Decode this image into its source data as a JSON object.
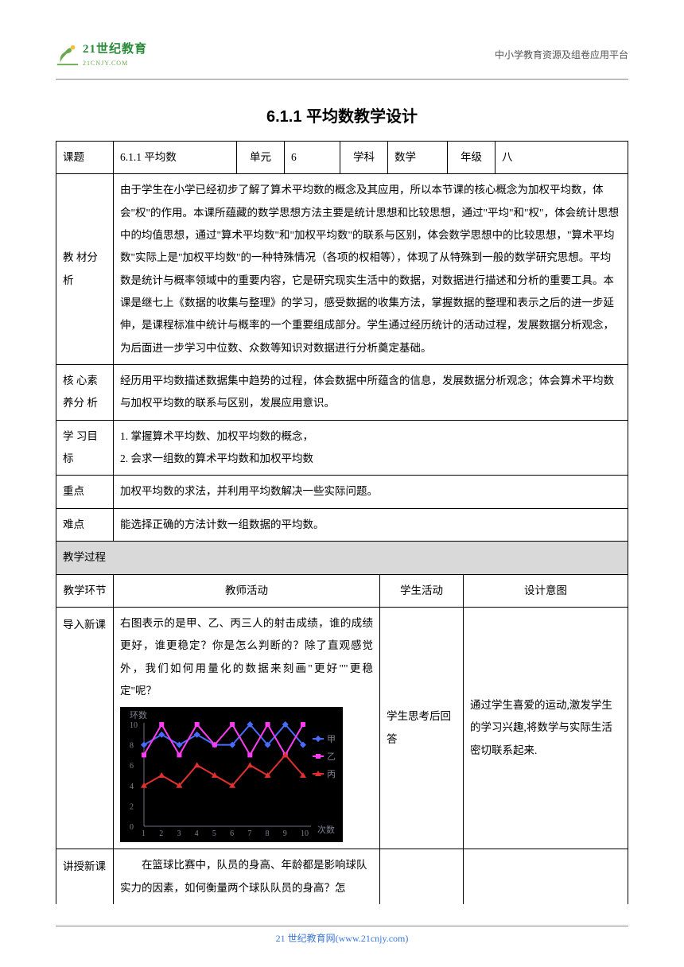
{
  "header": {
    "logo_main": "21世纪教育",
    "logo_sub": "21CNJY.COM",
    "right_text": "中小学教育资源及组卷应用平台"
  },
  "title": "6.1.1 平均数教学设计",
  "info_row": {
    "k_topic": "课题",
    "v_topic": "6.1.1 平均数",
    "k_unit": "单元",
    "v_unit": "6",
    "k_subject": "学科",
    "v_subject": "数学",
    "k_grade": "年级",
    "v_grade": "八"
  },
  "analysis": {
    "label": "教 材分 析",
    "text": "由于学生在小学已经初步了解了算术平均数的概念及其应用，所以本节课的核心概念为加权平均数，体会\"权\"的作用。本课所蕴藏的数学思想方法主要是统计思想和比较思想，通过\"平均\"和\"权\"，体会统计思想中的均值思想，通过\"算术平均数\"和\"加权平均数\"的联系与区别，体会数学思想中的比较思想，\"算术平均数\"实际上是\"加权平均数\"的一种特殊情况（各项的权相等），体现了从特殊到一般的数学研究思想。平均数是统计与概率领域中的重要内容，它是研究现实生活中的数据，对数据进行描述和分析的重要工具。本课是继七上《数据的收集与整理》的学习，感受数据的收集方法，掌握数据的整理和表示之后的进一步延伸，是课程标准中统计与概率的一个重要组成部分。学生通过经历统计的活动过程，发展数据分析观念，为后面进一步学习中位数、众数等知识对数据进行分析奠定基础。"
  },
  "core": {
    "label": "核 心素 养分 析",
    "text": "经历用平均数描述数据集中趋势的过程，体会数据中所蕴含的信息，发展数据分析观念；体会算术平均数与加权平均数的联系与区别，发展应用意识。"
  },
  "goal": {
    "label": "学 习目 标",
    "text1": "1. 掌握算术平均数、加权平均数的概念，",
    "text2": "2. 会求一组数的算术平均数和加权平均数"
  },
  "focus": {
    "label": "重点",
    "text": "加权平均数的求法，并利用平均数解决一些实际问题。"
  },
  "difficulty": {
    "label": "难点",
    "text": "能选择正确的方法计数一组数据的平均数。"
  },
  "process_header": "教学过程",
  "process_cols": {
    "c1": "教学环节",
    "c2": "教师活动",
    "c3": "学生活动",
    "c4": "设计意图"
  },
  "intro": {
    "label": "导入新课",
    "teacher": "右图表示的是甲、乙、丙三人的射击成绩，谁的成绩更好，谁更稳定？你是怎么判断的？除了直观感觉外，我们如何用量化的数据来刻画\"更好\"\"更稳定\"呢？",
    "student": "学生思考后回答",
    "intent": "通过学生喜爱的运动,激发学生的学习兴趣,将数学与实际生活密切联系起来."
  },
  "lecture": {
    "label": "讲授新课",
    "teacher": "　　在篮球比赛中，队员的身高、年龄都是影响球队实力的因素，如何衡量两个球队队员的身高？怎"
  },
  "chart": {
    "type": "line",
    "background_color": "#000000",
    "x_axis_label": "次数",
    "y_axis_label": "环数",
    "x_ticks": [
      1,
      2,
      3,
      4,
      5,
      6,
      7,
      8,
      9,
      10
    ],
    "y_ticks": [
      0,
      2,
      4,
      6,
      8,
      10
    ],
    "ylim": [
      0,
      10
    ],
    "series": [
      {
        "name": "甲",
        "color": "#4a6bff",
        "marker": "diamond",
        "values": [
          8,
          9,
          8,
          9,
          8,
          8,
          10,
          8,
          10,
          8
        ]
      },
      {
        "name": "乙",
        "color": "#ff3cf0",
        "marker": "square",
        "values": [
          7,
          10,
          7,
          10,
          8,
          10,
          7,
          10,
          7,
          10
        ]
      },
      {
        "name": "丙",
        "color": "#e03030",
        "marker": "triangle",
        "values": [
          4,
          5,
          4,
          6,
          5,
          4,
          6,
          5,
          7,
          5
        ]
      }
    ],
    "axis_color": "#707080",
    "text_color": "#808090"
  },
  "footer": {
    "brand": "21 世纪教育网",
    "url": "(www.21cnjy.com)"
  }
}
